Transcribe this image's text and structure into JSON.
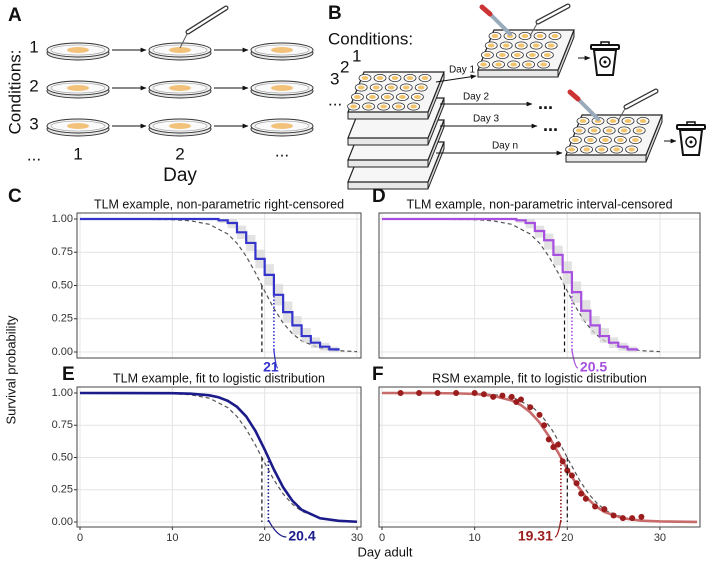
{
  "diagram_a": {
    "panel": "A",
    "row_title": "Conditions:",
    "rows": [
      "1",
      "2",
      "3",
      "..."
    ],
    "columns": [
      "1",
      "2",
      "..."
    ],
    "column_title": "Day"
  },
  "diagram_b": {
    "panel": "B",
    "title": "Conditions:",
    "stack_labels": [
      "1",
      "2",
      "3",
      "..."
    ],
    "arrows": [
      "Day 1",
      "Day 2",
      "Day 3",
      "Day n"
    ],
    "continuations": [
      "...",
      "..."
    ]
  },
  "shared_labels": {
    "y": "Survival probability",
    "x": "Day adult"
  },
  "chart_data": [
    {
      "type": "step",
      "panel": "C",
      "title": "TLM example, non-parametric right-censored",
      "xlim": [
        0,
        30
      ],
      "ylim": [
        0,
        1
      ],
      "xticks": [
        0,
        10,
        20,
        30
      ],
      "yticks": [
        {
          "value": 0,
          "label": "0.00"
        },
        0.25,
        {
          "value": 0.5,
          "label": "0.50"
        },
        0.75,
        {
          "value": 1,
          "label": "1.00"
        }
      ],
      "show_xtick_labels": false,
      "show_ytick_labels": true,
      "grid": true,
      "reference": {
        "color": "#555555",
        "x": [
          0,
          10,
          12,
          14,
          16,
          17,
          18,
          19,
          20,
          21,
          22,
          23,
          24,
          26,
          28,
          30
        ],
        "values": [
          1,
          0.9955,
          0.986,
          0.96,
          0.887,
          0.818,
          0.72,
          0.596,
          0.458,
          0.327,
          0.218,
          0.138,
          0.084,
          0.029,
          0.01,
          0.003
        ]
      },
      "reference_median": 19.7,
      "series": [
        {
          "color": "#3434cc",
          "x": [
            15,
            16,
            17,
            18,
            19,
            20,
            21,
            22,
            23,
            24,
            25,
            26,
            27,
            28
          ],
          "values": [
            0.99,
            0.97,
            0.9,
            0.82,
            0.7,
            0.58,
            0.43,
            0.3,
            0.2,
            0.12,
            0.07,
            0.04,
            0.02,
            0.01
          ],
          "band_upper": [
            1,
            1,
            0.95,
            0.88,
            0.77,
            0.66,
            0.51,
            0.38,
            0.27,
            0.18,
            0.11,
            0.07,
            0.04,
            0.03
          ],
          "band_lower": [
            0.97,
            0.93,
            0.85,
            0.76,
            0.63,
            0.5,
            0.35,
            0.22,
            0.13,
            0.07,
            0.03,
            0.01,
            0,
            0
          ]
        }
      ],
      "median": 21
    },
    {
      "type": "step",
      "panel": "D",
      "title": "TLM example, non-parametric interval-censored",
      "xlim": [
        0,
        34
      ],
      "ylim": [
        0,
        1
      ],
      "xticks": [
        0,
        10,
        20,
        30
      ],
      "yticks": [
        {
          "value": 0,
          "label": "0.00"
        },
        0.25,
        {
          "value": 0.5,
          "label": "0.50"
        },
        0.75,
        {
          "value": 1,
          "label": "1.00"
        }
      ],
      "show_xtick_labels": false,
      "show_ytick_labels": false,
      "grid": true,
      "reference": {
        "color": "#555555",
        "x": [
          0,
          10,
          12,
          14,
          16,
          17,
          18,
          19,
          20,
          21,
          22,
          23,
          24,
          26,
          28,
          30
        ],
        "values": [
          1,
          0.9955,
          0.986,
          0.96,
          0.887,
          0.818,
          0.72,
          0.596,
          0.458,
          0.327,
          0.218,
          0.138,
          0.084,
          0.029,
          0.01,
          0.003
        ]
      },
      "reference_median": 19.7,
      "series": [
        {
          "color": "#a64fe0",
          "x": [
            14.5,
            15.5,
            16.5,
            17.5,
            18.5,
            19.5,
            20.5,
            21.5,
            22.5,
            23.5,
            24.5,
            25.5,
            26.5,
            27.5
          ],
          "values": [
            0.99,
            0.97,
            0.91,
            0.84,
            0.73,
            0.6,
            0.45,
            0.31,
            0.2,
            0.12,
            0.07,
            0.04,
            0.02,
            0.01
          ],
          "band_upper": [
            1,
            1,
            0.95,
            0.89,
            0.8,
            0.68,
            0.53,
            0.39,
            0.27,
            0.18,
            0.11,
            0.07,
            0.04,
            0.03
          ],
          "band_lower": [
            0.97,
            0.93,
            0.86,
            0.77,
            0.65,
            0.51,
            0.37,
            0.23,
            0.13,
            0.07,
            0.03,
            0.01,
            0,
            0
          ]
        }
      ],
      "median": 20.5
    },
    {
      "type": "line",
      "panel": "E",
      "title": "TLM example, fit to logistic distribution",
      "xlim": [
        0,
        30
      ],
      "ylim": [
        0,
        1
      ],
      "xticks": [
        0,
        10,
        20,
        30
      ],
      "yticks": [
        {
          "value": 0,
          "label": "0.00"
        },
        0.25,
        {
          "value": 0.5,
          "label": "0.50"
        },
        0.75,
        {
          "value": 1,
          "label": "1.00"
        }
      ],
      "show_xtick_labels": true,
      "show_ytick_labels": true,
      "grid": true,
      "reference": {
        "color": "#555555",
        "x": [
          0,
          10,
          12,
          14,
          16,
          17,
          18,
          19,
          20,
          21,
          22,
          23,
          24,
          26,
          28,
          30
        ],
        "values": [
          1,
          0.9955,
          0.986,
          0.96,
          0.887,
          0.818,
          0.72,
          0.596,
          0.458,
          0.327,
          0.218,
          0.138,
          0.084,
          0.029,
          0.01,
          0.003
        ]
      },
      "reference_median": 19.7,
      "series": [
        {
          "color": "#1b1b8a",
          "x": [
            0,
            10,
            12,
            14,
            15,
            16,
            17,
            18,
            19,
            20,
            21,
            22,
            23,
            24,
            26,
            28,
            30
          ],
          "values": [
            1,
            0.9985,
            0.995,
            0.982,
            0.967,
            0.94,
            0.893,
            0.818,
            0.706,
            0.562,
            0.407,
            0.269,
            0.165,
            0.095,
            0.029,
            0.009,
            0.002
          ]
        }
      ],
      "median": 20.4
    },
    {
      "type": "scatter",
      "panel": "F",
      "title": "RSM example, fit to logistic distribution",
      "xlim": [
        0,
        34
      ],
      "ylim": [
        0,
        1
      ],
      "xticks": [
        0,
        10,
        20,
        30
      ],
      "yticks": [
        {
          "value": 0,
          "label": "0.00"
        },
        0.25,
        {
          "value": 0.5,
          "label": "0.50"
        },
        0.75,
        {
          "value": 1,
          "label": "1.00"
        }
      ],
      "show_xtick_labels": true,
      "show_ytick_labels": false,
      "grid": true,
      "reference": {
        "color": "#555555",
        "x": [
          0,
          10.3,
          12.3,
          14.3,
          16.3,
          17.3,
          18.3,
          19.3,
          20.3,
          21.3,
          22.3,
          23.3,
          24.3,
          26.3,
          28.3,
          30.3
        ],
        "values": [
          1,
          0.9955,
          0.986,
          0.96,
          0.887,
          0.818,
          0.72,
          0.596,
          0.458,
          0.327,
          0.218,
          0.138,
          0.084,
          0.029,
          0.01,
          0.003
        ]
      },
      "reference_median": 20,
      "fit": {
        "color": "#c86b6b",
        "x": [
          0,
          5,
          8,
          10,
          12,
          14,
          15,
          16,
          17,
          18,
          19,
          20,
          21,
          22,
          23,
          24,
          26,
          28,
          30,
          34
        ],
        "values": [
          1,
          0.9995,
          0.997,
          0.993,
          0.979,
          0.942,
          0.906,
          0.851,
          0.772,
          0.666,
          0.54,
          0.411,
          0.291,
          0.195,
          0.126,
          0.078,
          0.029,
          0.01,
          0.004,
          0.0004
        ]
      },
      "series": [
        {
          "color": "#9b1c1c",
          "x": [
            2,
            4,
            6,
            8,
            10,
            11,
            12,
            13,
            14,
            14.5,
            15,
            16,
            17,
            17.5,
            18,
            18.5,
            19,
            19.5,
            20,
            20.5,
            21,
            21.5,
            22,
            23,
            24,
            25,
            26,
            27,
            28
          ],
          "values": [
            1,
            1,
            1,
            1,
            1,
            0.99,
            0.97,
            0.98,
            0.97,
            0.93,
            0.95,
            0.89,
            0.83,
            0.75,
            0.64,
            0.58,
            0.6,
            0.47,
            0.4,
            0.36,
            0.3,
            0.22,
            0.18,
            0.12,
            0.1,
            0.05,
            0.03,
            0.03,
            0.04
          ]
        }
      ],
      "median": 19.31
    }
  ]
}
